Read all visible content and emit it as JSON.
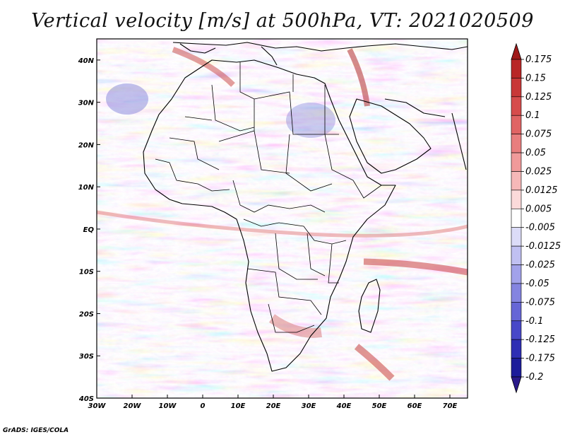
{
  "title": "Vertical velocity [m/s] at 500hPa, VT: 2021020509",
  "footer": "GrADS: IGES/COLA",
  "map": {
    "lon_range": [
      -30,
      75
    ],
    "lat_range": [
      -40,
      45
    ],
    "lat_labels": [
      "40N",
      "30N",
      "20N",
      "10N",
      "EQ",
      "10S",
      "20S",
      "30S",
      "40S"
    ],
    "lat_values": [
      40,
      30,
      20,
      10,
      0,
      -10,
      -20,
      -30,
      -40
    ],
    "lon_labels": [
      "30W",
      "20W",
      "10W",
      "0",
      "10E",
      "20E",
      "30E",
      "40E",
      "50E",
      "60E",
      "70E"
    ],
    "lon_values": [
      -30,
      -20,
      -10,
      0,
      10,
      20,
      30,
      40,
      50,
      60,
      70
    ]
  },
  "colorbar": {
    "labels": [
      "0.175",
      "0.15",
      "0.125",
      "0.1",
      "0.075",
      "0.05",
      "0.025",
      "0.0125",
      "0.005",
      "-0.005",
      "-0.0125",
      "-0.025",
      "-0.05",
      "-0.075",
      "-0.1",
      "-0.125",
      "-0.175",
      "-0.2"
    ],
    "colors": [
      "#a01a1a",
      "#b82626",
      "#c83838",
      "#d64c4c",
      "#e06464",
      "#e87e7e",
      "#f09a9a",
      "#f6b8b8",
      "#fbdada",
      "#ffffff",
      "#dcdcf8",
      "#c0c0f2",
      "#a2a2ea",
      "#8484e0",
      "#6666d6",
      "#4848c8",
      "#2e2eb4",
      "#1c1c9a",
      "#2a1a8a"
    ]
  }
}
